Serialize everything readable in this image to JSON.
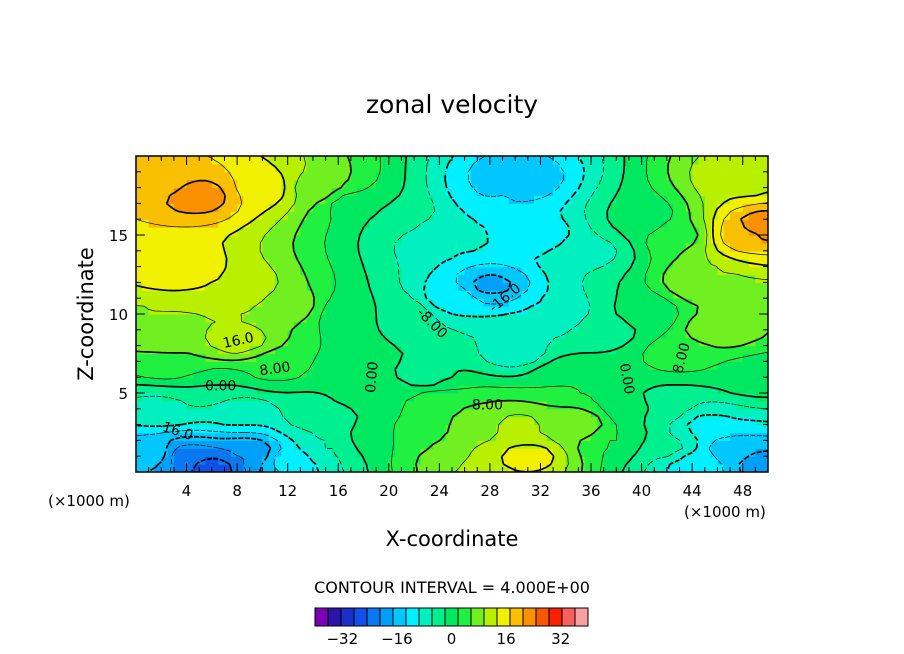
{
  "chart_data": {
    "type": "heatmap",
    "title": "zonal velocity",
    "xlabel": "X-coordinate",
    "ylabel": "Z-coordinate",
    "x_unit": "(×1000 m)",
    "x_range": [
      0,
      50
    ],
    "y_range": [
      0,
      20
    ],
    "x_ticks": [
      "4",
      "8",
      "12",
      "16",
      "20",
      "24",
      "28",
      "32",
      "36",
      "40",
      "44",
      "48"
    ],
    "y_ticks": [
      "5",
      "10",
      "15"
    ],
    "contour_interval_text": "CONTOUR INTERVAL = 4.000E+00",
    "contour_labels": [
      {
        "text": "16.0",
        "x": 8.1,
        "y": 8.3,
        "rot": -12
      },
      {
        "text": "8.00",
        "x": 11.0,
        "y": 6.5,
        "rot": -8
      },
      {
        "text": "0.00",
        "x": 6.7,
        "y": 5.4,
        "rot": 0
      },
      {
        "text": "-16.0",
        "x": 3.1,
        "y": 2.6,
        "rot": 18
      },
      {
        "text": "0.00",
        "x": 18.7,
        "y": 6.0,
        "rot": -85
      },
      {
        "text": "-8.00",
        "x": 23.4,
        "y": 9.4,
        "rot": 45
      },
      {
        "text": "-16.0",
        "x": 29.2,
        "y": 11.0,
        "rot": -40
      },
      {
        "text": "8.00",
        "x": 27.8,
        "y": 4.2,
        "rot": 0
      },
      {
        "text": "0.00",
        "x": 38.8,
        "y": 5.9,
        "rot": 80
      },
      {
        "text": "8.00",
        "x": 43.2,
        "y": 7.2,
        "rot": -75
      }
    ],
    "colorbar": {
      "levels": [
        -40,
        -36,
        -32,
        -28,
        -24,
        -20,
        -16,
        -12,
        -8,
        -4,
        0,
        4,
        8,
        12,
        16,
        20,
        24,
        28,
        32,
        36,
        40
      ],
      "colors": [
        "#7a00b4",
        "#2a15a8",
        "#1a30c8",
        "#1050e8",
        "#0a78f0",
        "#00a0f8",
        "#00c8ff",
        "#00f0ff",
        "#00f0c0",
        "#00f090",
        "#00e860",
        "#20f040",
        "#70f020",
        "#b8f000",
        "#f0f000",
        "#f8c000",
        "#f89000",
        "#f85800",
        "#f82000",
        "#f86060",
        "#f8a0a0"
      ],
      "tick_labels": [
        "-32",
        "-16",
        "0",
        "16",
        "32"
      ],
      "tick_values": [
        -32,
        -16,
        0,
        16,
        32
      ]
    },
    "field_anchors": [
      {
        "x": 5,
        "y": 17.5,
        "v": 26
      },
      {
        "x": 2,
        "y": 18.5,
        "v": 22
      },
      {
        "x": 10,
        "y": 18,
        "v": 19
      },
      {
        "x": 14,
        "y": 18,
        "v": 11
      },
      {
        "x": 3,
        "y": 13,
        "v": 20
      },
      {
        "x": 8,
        "y": 11.5,
        "v": 16
      },
      {
        "x": 12,
        "y": 10.5,
        "v": 10
      },
      {
        "x": 1,
        "y": 9.5,
        "v": 12
      },
      {
        "x": 8,
        "y": 8.3,
        "v": 14
      },
      {
        "x": 3,
        "y": 7,
        "v": 8
      },
      {
        "x": 11,
        "y": 6.5,
        "v": 5
      },
      {
        "x": 6,
        "y": 5.3,
        "v": 0
      },
      {
        "x": 2,
        "y": 4,
        "v": -5
      },
      {
        "x": 8,
        "y": 3.8,
        "v": -7
      },
      {
        "x": 14,
        "y": 3.5,
        "v": -3
      },
      {
        "x": 4,
        "y": 1,
        "v": -22
      },
      {
        "x": 6,
        "y": 0.3,
        "v": -26
      },
      {
        "x": 9,
        "y": 1.2,
        "v": -20
      },
      {
        "x": 1,
        "y": 1.2,
        "v": -13
      },
      {
        "x": 12,
        "y": 0.8,
        "v": -11
      },
      {
        "x": 15,
        "y": 1.5,
        "v": -4
      },
      {
        "x": 17,
        "y": 17,
        "v": 3
      },
      {
        "x": 17,
        "y": 10,
        "v": 1
      },
      {
        "x": 17.5,
        "y": 5,
        "v": 1
      },
      {
        "x": 19,
        "y": 2,
        "v": 2
      },
      {
        "x": 21,
        "y": 16,
        "v": -2
      },
      {
        "x": 21,
        "y": 10,
        "v": -1
      },
      {
        "x": 23,
        "y": 6,
        "v": -1
      },
      {
        "x": 24,
        "y": 15,
        "v": -8
      },
      {
        "x": 25,
        "y": 11,
        "v": -10
      },
      {
        "x": 28,
        "y": 11.8,
        "v": -17
      },
      {
        "x": 29,
        "y": 17.5,
        "v": -12
      },
      {
        "x": 30,
        "y": 18.5,
        "v": -16
      },
      {
        "x": 32,
        "y": 15,
        "v": -10
      },
      {
        "x": 33,
        "y": 10,
        "v": -8
      },
      {
        "x": 30,
        "y": 7.5,
        "v": -6
      },
      {
        "x": 36,
        "y": 14,
        "v": -5
      },
      {
        "x": 37,
        "y": 9,
        "v": -2
      },
      {
        "x": 24,
        "y": 4.5,
        "v": 6
      },
      {
        "x": 27,
        "y": 3.5,
        "v": 9
      },
      {
        "x": 30,
        "y": 3,
        "v": 13
      },
      {
        "x": 31,
        "y": 1,
        "v": 18
      },
      {
        "x": 28,
        "y": 0.5,
        "v": 16
      },
      {
        "x": 25,
        "y": 1,
        "v": 11
      },
      {
        "x": 22,
        "y": 2,
        "v": 7
      },
      {
        "x": 35,
        "y": 3,
        "v": 11
      },
      {
        "x": 34,
        "y": 6,
        "v": 4
      },
      {
        "x": 38,
        "y": 2,
        "v": 4
      },
      {
        "x": 40,
        "y": 16,
        "v": 1
      },
      {
        "x": 40,
        "y": 10,
        "v": 1
      },
      {
        "x": 39.5,
        "y": 4,
        "v": 1
      },
      {
        "x": 43,
        "y": 15,
        "v": 7
      },
      {
        "x": 45,
        "y": 12,
        "v": 12
      },
      {
        "x": 48,
        "y": 15,
        "v": 22
      },
      {
        "x": 49.5,
        "y": 15.5,
        "v": 27
      },
      {
        "x": 48,
        "y": 18.5,
        "v": 15
      },
      {
        "x": 46,
        "y": 9,
        "v": 11
      },
      {
        "x": 43,
        "y": 7.5,
        "v": 6
      },
      {
        "x": 42,
        "y": 4,
        "v": -3
      },
      {
        "x": 45,
        "y": 3,
        "v": -9
      },
      {
        "x": 47,
        "y": 1.5,
        "v": -14
      },
      {
        "x": 49.5,
        "y": 0.5,
        "v": -18
      },
      {
        "x": 44,
        "y": 0.5,
        "v": -10
      },
      {
        "x": 42,
        "y": 1.5,
        "v": -3
      },
      {
        "x": 49,
        "y": 6,
        "v": 2
      }
    ]
  }
}
